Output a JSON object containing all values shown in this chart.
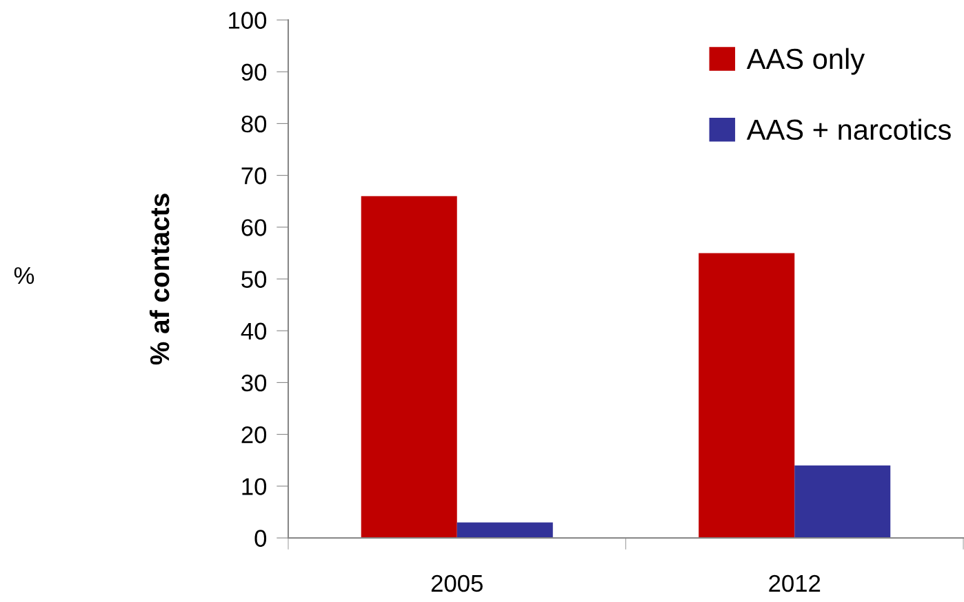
{
  "chart_data": {
    "type": "bar",
    "ylabel": "% af contacts",
    "annotations": [
      "%"
    ],
    "categories": [
      "2005",
      "2012"
    ],
    "series": [
      {
        "name": "AAS only",
        "color": "#c00000",
        "values": [
          66,
          55
        ]
      },
      {
        "name": "AAS + narcotics",
        "color": "#333399",
        "values": [
          3,
          14
        ]
      }
    ],
    "ylim": [
      0,
      100
    ],
    "yticks": [
      0,
      10,
      20,
      30,
      40,
      50,
      60,
      70,
      80,
      90,
      100
    ],
    "grid": false,
    "legend": "top right"
  }
}
